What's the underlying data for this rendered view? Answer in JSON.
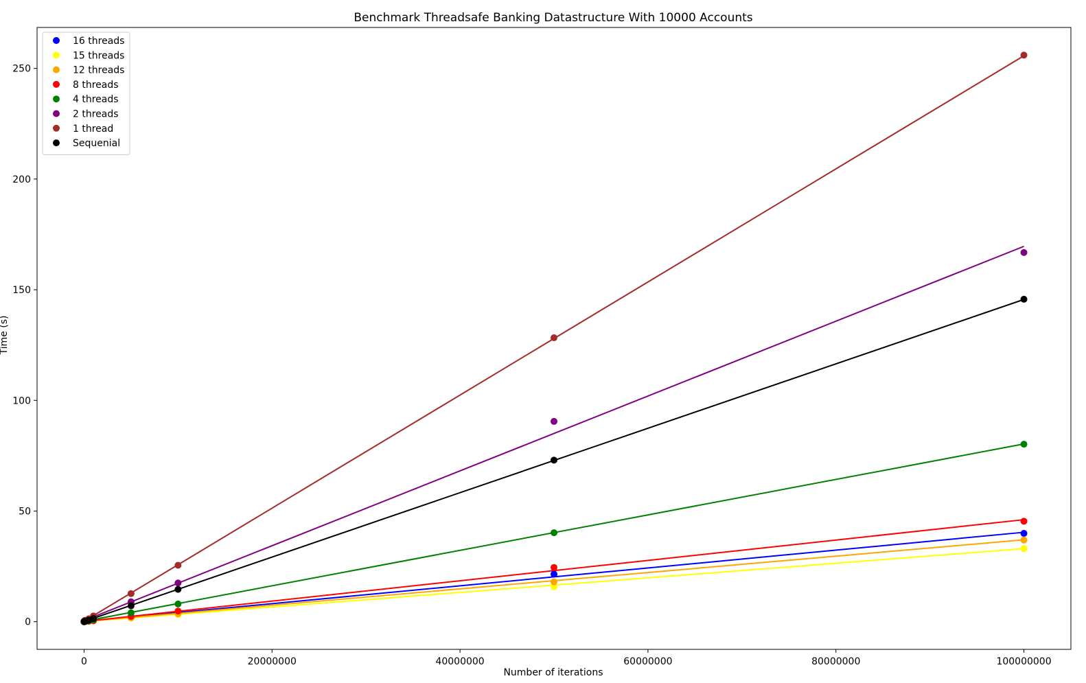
{
  "chart_data": {
    "type": "scatter",
    "title": "Benchmark Threadsafe Banking Datastructure With 10000 Accounts",
    "xlabel": "Number of iterations",
    "ylabel": "Time (s)",
    "xlim": [
      -5000000,
      105000000
    ],
    "ylim": [
      -12.5,
      268.5
    ],
    "xticks": [
      0,
      20000000,
      40000000,
      60000000,
      80000000,
      100000000
    ],
    "xtick_labels": [
      "0",
      "20000000",
      "40000000",
      "60000000",
      "80000000",
      "100000000"
    ],
    "yticks": [
      0,
      50,
      100,
      150,
      200,
      250
    ],
    "ytick_labels": [
      "0",
      "50",
      "100",
      "150",
      "200",
      "250"
    ],
    "grid": false,
    "legend_position": "top-left",
    "x": [
      100,
      1000,
      10000,
      100000,
      500000,
      1000000,
      5000000,
      10000000,
      50000000,
      100000000
    ],
    "series": [
      {
        "name": "16 threads",
        "color": "#0000ff",
        "y": [
          0.01,
          0.01,
          0.02,
          0.05,
          0.2,
          0.45,
          2.2,
          4.2,
          21.5,
          39.9
        ],
        "fit": [
          0.1,
          40.4
        ]
      },
      {
        "name": "15 threads",
        "color": "#ffff00",
        "y": [
          0.01,
          0.01,
          0.02,
          0.04,
          0.17,
          0.35,
          1.6,
          3.2,
          15.8,
          33.0
        ],
        "fit": [
          0.05,
          33.0
        ]
      },
      {
        "name": "12 threads",
        "color": "#ffa500",
        "y": [
          0.01,
          0.01,
          0.02,
          0.04,
          0.18,
          0.38,
          1.8,
          3.6,
          18.0,
          36.9
        ],
        "fit": [
          0.05,
          37.0
        ]
      },
      {
        "name": "8 threads",
        "color": "#ff0000",
        "y": [
          0.01,
          0.01,
          0.03,
          0.06,
          0.25,
          0.5,
          2.4,
          4.8,
          24.5,
          45.4
        ],
        "fit": [
          0.1,
          46.1
        ]
      },
      {
        "name": "4 threads",
        "color": "#008000",
        "y": [
          0.01,
          0.02,
          0.04,
          0.1,
          0.4,
          0.85,
          4.0,
          8.0,
          40.2,
          80.2
        ],
        "fit": [
          0.2,
          80.3
        ]
      },
      {
        "name": "2 threads",
        "color": "#800080",
        "y": [
          0.05,
          0.1,
          0.2,
          0.6,
          1.0,
          1.8,
          9.0,
          17.5,
          90.5,
          166.8
        ],
        "fit": [
          0.5,
          169.6
        ]
      },
      {
        "name": "1 thread",
        "color": "#a52a2a",
        "y": [
          0.1,
          0.15,
          0.3,
          0.5,
          1.3,
          2.6,
          12.7,
          25.5,
          128.3,
          256.0
        ],
        "fit": [
          0.2,
          255.7
        ]
      },
      {
        "name": "Sequenial",
        "color": "#000000",
        "y": [
          0.02,
          0.03,
          0.05,
          0.15,
          0.7,
          1.4,
          7.2,
          14.6,
          73.0,
          145.7
        ],
        "fit": [
          0.1,
          145.6
        ]
      }
    ]
  }
}
